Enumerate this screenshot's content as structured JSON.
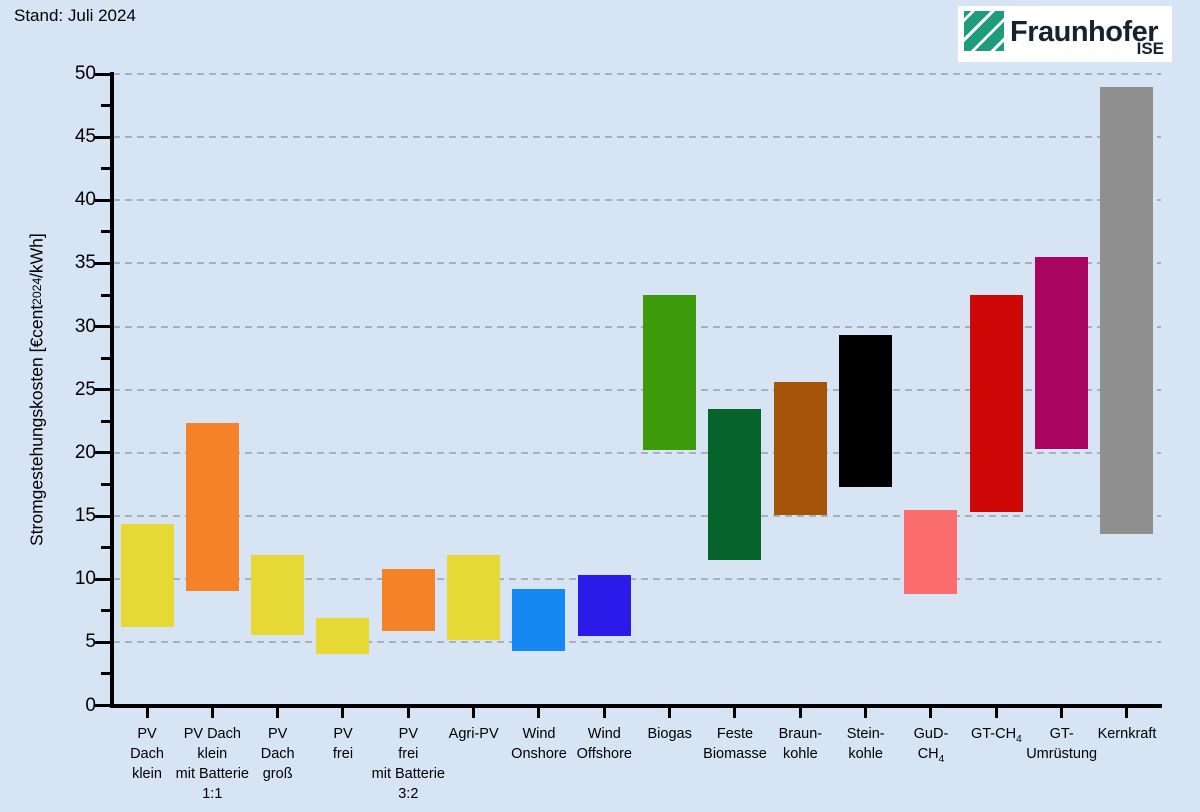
{
  "meta": {
    "stand": "Stand: Juli 2024"
  },
  "logo": {
    "brand": "Fraunhofer",
    "institute": "ISE",
    "green": "#1E9C7C",
    "text_color": "#14232D"
  },
  "page": {
    "background": "#D7E4F4",
    "axis_color": "#000000"
  },
  "chart_data": {
    "type": "bar",
    "subtype": "floating-range-bars",
    "title": "",
    "xlabel": "",
    "ylabel": "Stromgestehungskosten [€cent_2024/kWh]",
    "ylim": [
      0,
      50
    ],
    "yticks": [
      0,
      5,
      10,
      15,
      20,
      25,
      30,
      35,
      40,
      45,
      50
    ],
    "yminor_step": 2.5,
    "grid": {
      "show": true,
      "axis": "y",
      "style": "dashed",
      "color": "#A7B0BC"
    },
    "legend": "none",
    "unit": "€cent2024/kWh",
    "categories": [
      {
        "key": "pv-dach-klein",
        "label_lines": [
          "PV",
          "Dach",
          "klein"
        ],
        "min": 6.2,
        "max": 14.4,
        "color": "#E6D935"
      },
      {
        "key": "pv-dach-klein-batterie-1-1",
        "label_lines": [
          "PV Dach",
          "klein",
          "mit Batterie",
          "1:1"
        ],
        "min": 9.1,
        "max": 22.4,
        "color": "#F58228"
      },
      {
        "key": "pv-dach-gross",
        "label_lines": [
          "PV",
          "Dach",
          "groß"
        ],
        "min": 5.6,
        "max": 11.9,
        "color": "#E6D935"
      },
      {
        "key": "pv-frei",
        "label_lines": [
          "PV",
          "frei"
        ],
        "min": 4.1,
        "max": 6.9,
        "color": "#E6D935"
      },
      {
        "key": "pv-frei-batterie-3-2",
        "label_lines": [
          "PV",
          "frei",
          "mit Batterie",
          "3:2"
        ],
        "min": 5.9,
        "max": 10.8,
        "color": "#F58228"
      },
      {
        "key": "agri-pv",
        "label_lines": [
          "Agri-PV"
        ],
        "min": 5.2,
        "max": 11.9,
        "color": "#E6D935"
      },
      {
        "key": "wind-onshore",
        "label_lines": [
          "Wind",
          "Onshore"
        ],
        "min": 4.3,
        "max": 9.2,
        "color": "#1688F2"
      },
      {
        "key": "wind-offshore",
        "label_lines": [
          "Wind",
          "Offshore"
        ],
        "min": 5.5,
        "max": 10.3,
        "color": "#2B1AE8"
      },
      {
        "key": "biogas",
        "label_lines": [
          "Biogas"
        ],
        "min": 20.2,
        "max": 32.5,
        "color": "#3D9A0A"
      },
      {
        "key": "feste-biomasse",
        "label_lines": [
          "Feste",
          "Biomasse"
        ],
        "min": 11.5,
        "max": 23.5,
        "color": "#06632B"
      },
      {
        "key": "braunkohle",
        "label_lines": [
          "Braun-",
          "kohle"
        ],
        "min": 15.1,
        "max": 25.6,
        "color": "#A5540A"
      },
      {
        "key": "steinkohle",
        "label_lines": [
          "Stein-",
          "kohle"
        ],
        "min": 17.3,
        "max": 29.3,
        "color": "#000000"
      },
      {
        "key": "gud-ch4",
        "label_lines": [
          "GuD-",
          "CH_4"
        ],
        "min": 8.8,
        "max": 15.5,
        "color": "#FB6C6C"
      },
      {
        "key": "gt-ch4",
        "label_lines": [
          "GT-CH_4"
        ],
        "min": 15.3,
        "max": 32.5,
        "color": "#CE0707"
      },
      {
        "key": "gt-umruestung",
        "label_lines": [
          "GT-",
          "Umrüstung"
        ],
        "min": 20.3,
        "max": 35.5,
        "color": "#A90560"
      },
      {
        "key": "kernkraft",
        "label_lines": [
          "Kernkraft"
        ],
        "min": 13.6,
        "max": 49.0,
        "color": "#8F8F8F"
      }
    ]
  }
}
